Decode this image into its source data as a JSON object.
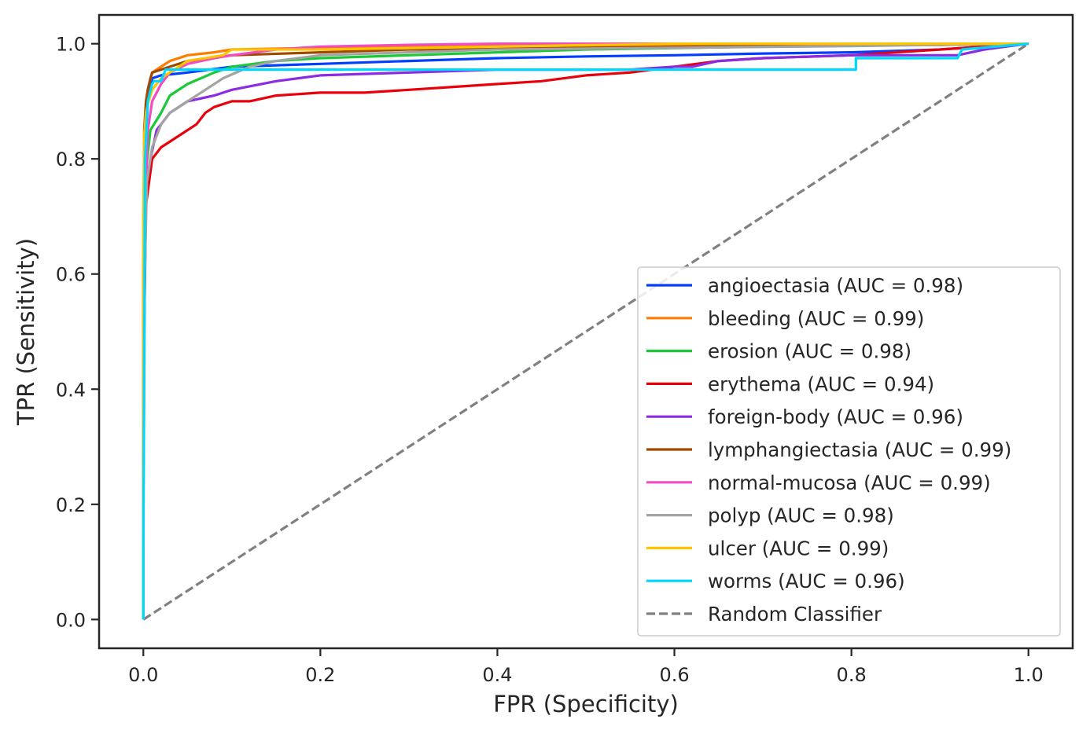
{
  "chart_data": {
    "type": "line",
    "title": "",
    "xlabel": "FPR (Specificity)",
    "ylabel": "TPR (Sensitivity)",
    "xlim": [
      -0.05,
      1.05
    ],
    "ylim": [
      -0.05,
      1.05
    ],
    "xticks": [
      "0.0",
      "0.2",
      "0.4",
      "0.6",
      "0.8",
      "1.0"
    ],
    "yticks": [
      "0.0",
      "0.2",
      "0.4",
      "0.6",
      "0.8",
      "1.0"
    ],
    "grid": false,
    "legend_position": "lower-right",
    "series": [
      {
        "name": "angioectasia (AUC = 0.98)",
        "color": "#023eff",
        "dashed": false,
        "x": [
          0,
          0,
          0.002,
          0.005,
          0.01,
          0.02,
          0.05,
          0.1,
          0.2,
          0.3,
          0.4,
          0.5,
          0.6,
          0.7,
          0.8,
          0.9,
          1.0
        ],
        "y": [
          0,
          0.5,
          0.8,
          0.9,
          0.94,
          0.945,
          0.95,
          0.96,
          0.965,
          0.97,
          0.975,
          0.978,
          0.98,
          0.983,
          0.985,
          0.99,
          1.0
        ]
      },
      {
        "name": "bleeding (AUC = 0.99)",
        "color": "#ff7c00",
        "dashed": false,
        "x": [
          0,
          0,
          0.002,
          0.005,
          0.01,
          0.02,
          0.03,
          0.05,
          0.08,
          0.1,
          0.2,
          0.3,
          0.5,
          0.7,
          0.92,
          1.0
        ],
        "y": [
          0,
          0.6,
          0.85,
          0.92,
          0.95,
          0.96,
          0.97,
          0.98,
          0.985,
          0.99,
          0.993,
          0.995,
          0.997,
          0.998,
          1.0,
          1.0
        ]
      },
      {
        "name": "erosion (AUC = 0.98)",
        "color": "#1ac938",
        "dashed": false,
        "x": [
          0,
          0,
          0.003,
          0.008,
          0.02,
          0.03,
          0.05,
          0.08,
          0.1,
          0.15,
          0.2,
          0.3,
          0.4,
          0.5,
          0.7,
          1.0
        ],
        "y": [
          0,
          0.5,
          0.78,
          0.85,
          0.88,
          0.91,
          0.93,
          0.95,
          0.96,
          0.97,
          0.975,
          0.98,
          0.985,
          0.99,
          0.995,
          1.0
        ]
      },
      {
        "name": "erythema (AUC = 0.94)",
        "color": "#e8000b",
        "dashed": false,
        "x": [
          0,
          0,
          0.003,
          0.01,
          0.02,
          0.04,
          0.06,
          0.07,
          0.08,
          0.1,
          0.12,
          0.15,
          0.2,
          0.25,
          0.3,
          0.35,
          0.4,
          0.45,
          0.5,
          0.55,
          0.6,
          0.65,
          0.7,
          0.8,
          0.9,
          1.0
        ],
        "y": [
          0,
          0.4,
          0.72,
          0.8,
          0.82,
          0.84,
          0.86,
          0.88,
          0.89,
          0.9,
          0.9,
          0.91,
          0.915,
          0.915,
          0.92,
          0.925,
          0.93,
          0.935,
          0.945,
          0.95,
          0.96,
          0.97,
          0.975,
          0.98,
          0.99,
          1.0
        ]
      },
      {
        "name": "foreign-body (AUC = 0.96)",
        "color": "#8b2be2",
        "dashed": false,
        "x": [
          0,
          0,
          0.003,
          0.008,
          0.015,
          0.03,
          0.05,
          0.08,
          0.1,
          0.15,
          0.2,
          0.3,
          0.4,
          0.5,
          0.55,
          0.6,
          0.62,
          0.65,
          0.7,
          0.8,
          0.9,
          0.92,
          0.95,
          1.0
        ],
        "y": [
          0,
          0.5,
          0.75,
          0.8,
          0.85,
          0.88,
          0.9,
          0.91,
          0.92,
          0.935,
          0.945,
          0.95,
          0.955,
          0.955,
          0.955,
          0.96,
          0.96,
          0.97,
          0.975,
          0.98,
          0.98,
          0.98,
          0.99,
          1.0
        ]
      },
      {
        "name": "lymphangiectasia (AUC = 0.99)",
        "color": "#9f4800",
        "dashed": false,
        "x": [
          0,
          0,
          0.001,
          0.003,
          0.005,
          0.008,
          0.01,
          0.02,
          0.03,
          0.05,
          0.1,
          0.2,
          0.3,
          0.5,
          0.7,
          0.9,
          1.0
        ],
        "y": [
          0,
          0.6,
          0.85,
          0.9,
          0.92,
          0.94,
          0.95,
          0.955,
          0.96,
          0.97,
          0.98,
          0.985,
          0.99,
          0.993,
          0.996,
          0.998,
          1.0
        ]
      },
      {
        "name": "normal-mucosa (AUC = 0.99)",
        "color": "#f14cc1",
        "dashed": false,
        "x": [
          0,
          0,
          0.002,
          0.005,
          0.01,
          0.02,
          0.03,
          0.05,
          0.08,
          0.1,
          0.15,
          0.2,
          0.3,
          0.4,
          0.52,
          0.7,
          1.0
        ],
        "y": [
          0,
          0.2,
          0.7,
          0.85,
          0.9,
          0.93,
          0.95,
          0.965,
          0.975,
          0.98,
          0.99,
          0.995,
          0.998,
          1.0,
          1.0,
          1.0,
          1.0
        ]
      },
      {
        "name": "polyp (AUC = 0.98)",
        "color": "#a3a3a3",
        "dashed": false,
        "x": [
          0,
          0,
          0.004,
          0.01,
          0.02,
          0.03,
          0.05,
          0.07,
          0.09,
          0.12,
          0.15,
          0.2,
          0.3,
          0.4,
          0.6,
          0.8,
          1.0
        ],
        "y": [
          0,
          0.5,
          0.76,
          0.82,
          0.86,
          0.88,
          0.9,
          0.92,
          0.94,
          0.96,
          0.97,
          0.98,
          0.985,
          0.99,
          0.993,
          0.996,
          1.0
        ]
      },
      {
        "name": "ulcer (AUC = 0.99)",
        "color": "#ffc400",
        "dashed": false,
        "x": [
          0,
          0,
          0.001,
          0.003,
          0.006,
          0.01,
          0.02,
          0.03,
          0.05,
          0.09,
          0.1,
          0.2,
          0.4,
          0.6,
          0.8,
          0.92,
          1.0
        ],
        "y": [
          0,
          0.7,
          0.84,
          0.88,
          0.9,
          0.92,
          0.94,
          0.95,
          0.97,
          0.98,
          0.99,
          0.99,
          0.995,
          1.0,
          1.0,
          1.0,
          1.0
        ]
      },
      {
        "name": "worms (AUC = 0.96)",
        "color": "#00d7ff",
        "dashed": false,
        "x": [
          0,
          0,
          0.002,
          0.005,
          0.01,
          0.012,
          0.02,
          0.025,
          0.08,
          0.1,
          0.3,
          0.5,
          0.7,
          0.805,
          0.805,
          0.92,
          0.925,
          1.0
        ],
        "y": [
          0,
          0.12,
          0.8,
          0.9,
          0.93,
          0.935,
          0.935,
          0.955,
          0.955,
          0.955,
          0.955,
          0.955,
          0.955,
          0.955,
          0.975,
          0.975,
          0.99,
          1.0
        ]
      },
      {
        "name": "Random Classifier",
        "color": "#808080",
        "dashed": true,
        "x": [
          0,
          1
        ],
        "y": [
          0,
          1
        ]
      }
    ]
  }
}
